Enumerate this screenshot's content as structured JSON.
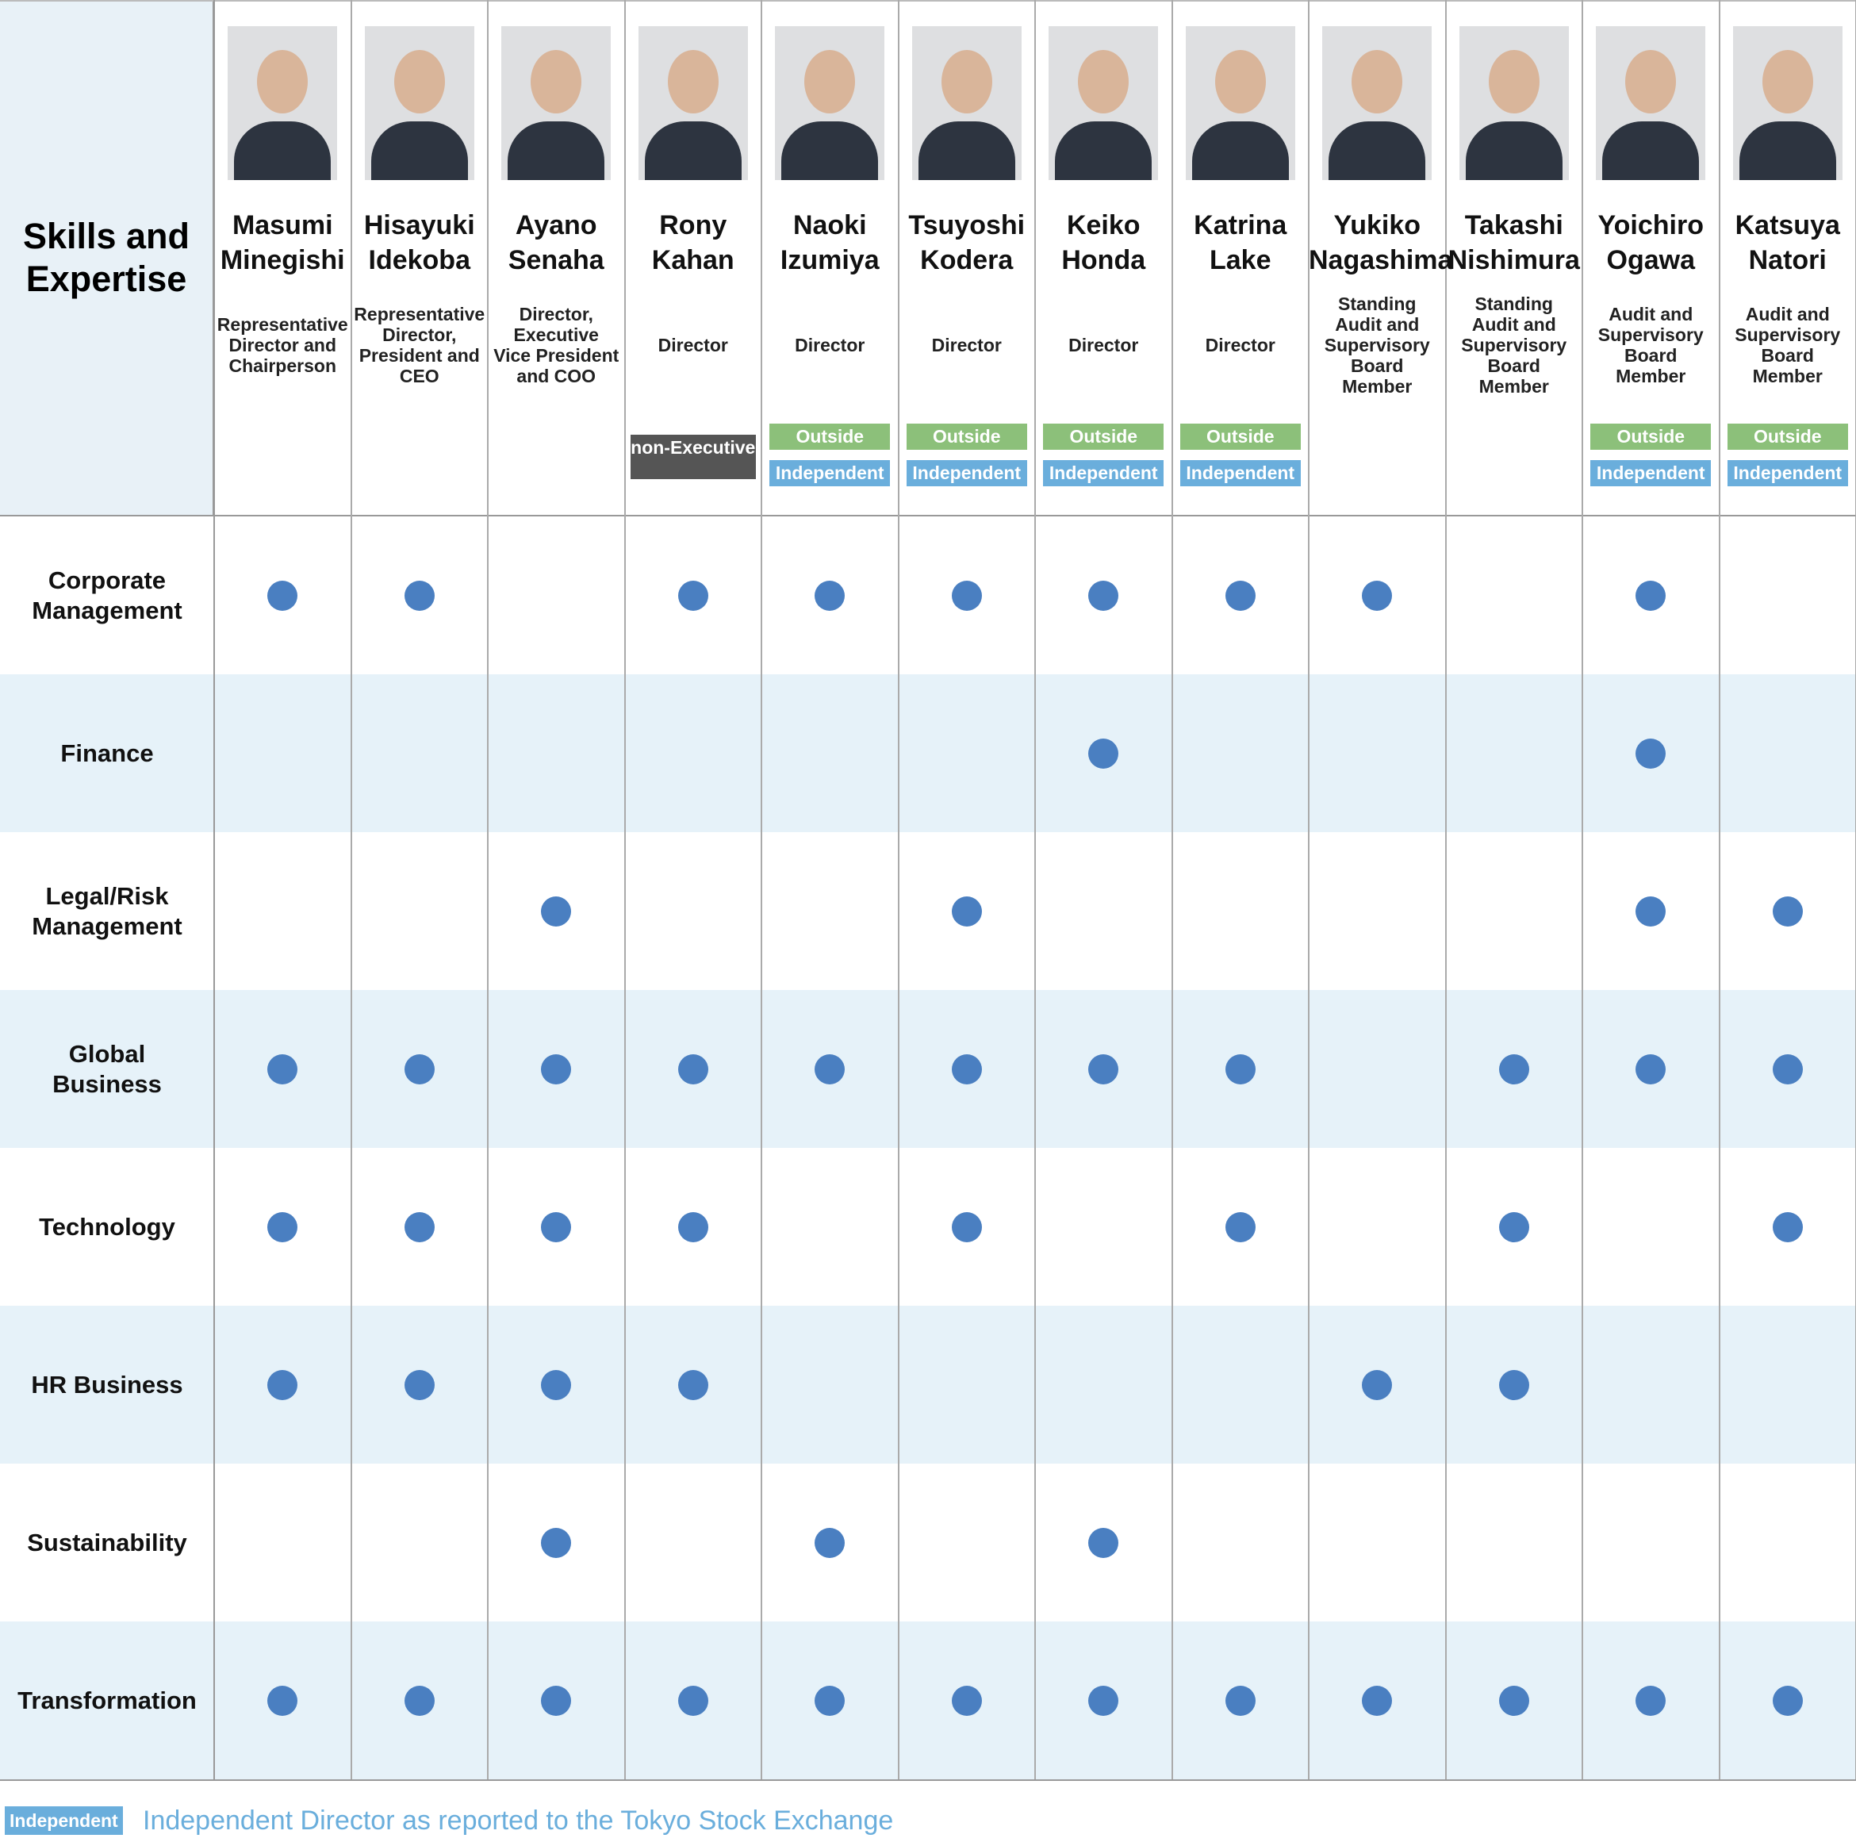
{
  "header": {
    "title": "Skills and Expertise"
  },
  "directors": [
    {
      "first": "Masumi",
      "last": "Minegishi",
      "role": "Representative Director and Chairperson",
      "badges": []
    },
    {
      "first": "Hisayuki",
      "last": "Idekoba",
      "role": "Representative Director, President and CEO",
      "badges": []
    },
    {
      "first": "Ayano",
      "last": "Senaha",
      "role": "Director, Executive Vice President and COO",
      "badges": []
    },
    {
      "first": "Rony",
      "last": "Kahan",
      "role": "Director",
      "badges": [
        "non-Executive"
      ]
    },
    {
      "first": "Naoki",
      "last": "Izumiya",
      "role": "Director",
      "badges": [
        "Outside",
        "Independent"
      ]
    },
    {
      "first": "Tsuyoshi",
      "last": "Kodera",
      "role": "Director",
      "badges": [
        "Outside",
        "Independent"
      ]
    },
    {
      "first": "Keiko",
      "last": "Honda",
      "role": "Director",
      "badges": [
        "Outside",
        "Independent"
      ]
    },
    {
      "first": "Katrina",
      "last": "Lake",
      "role": "Director",
      "badges": [
        "Outside",
        "Independent"
      ]
    },
    {
      "first": "Yukiko",
      "last": "Nagashima",
      "role": "Standing Audit and Supervisory Board Member",
      "badges": []
    },
    {
      "first": "Takashi",
      "last": "Nishimura",
      "role": "Standing Audit and Supervisory Board Member",
      "badges": []
    },
    {
      "first": "Yoichiro",
      "last": "Ogawa",
      "role": "Audit and Supervisory Board Member",
      "badges": [
        "Outside",
        "Independent"
      ]
    },
    {
      "first": "Katsuya",
      "last": "Natori",
      "role": "Audit and Supervisory Board Member",
      "badges": [
        "Outside",
        "Independent"
      ]
    }
  ],
  "skills": [
    {
      "label": "Corporate Management",
      "marks": [
        true,
        true,
        false,
        true,
        true,
        true,
        true,
        true,
        true,
        false,
        true,
        false
      ]
    },
    {
      "label": "Finance",
      "marks": [
        false,
        false,
        false,
        false,
        false,
        false,
        true,
        false,
        false,
        false,
        true,
        false
      ]
    },
    {
      "label": "Legal/Risk Management",
      "marks": [
        false,
        false,
        true,
        false,
        false,
        true,
        false,
        false,
        false,
        false,
        true,
        true
      ]
    },
    {
      "label": "Global Business",
      "marks": [
        true,
        true,
        true,
        true,
        true,
        true,
        true,
        true,
        false,
        true,
        true,
        true
      ]
    },
    {
      "label": "Technology",
      "marks": [
        true,
        true,
        true,
        true,
        false,
        true,
        false,
        true,
        false,
        true,
        false,
        true
      ]
    },
    {
      "label": "HR Business",
      "marks": [
        true,
        true,
        true,
        true,
        false,
        false,
        false,
        false,
        true,
        true,
        false,
        false
      ]
    },
    {
      "label": "Sustainability",
      "marks": [
        false,
        false,
        true,
        false,
        true,
        false,
        true,
        false,
        false,
        false,
        false,
        false
      ]
    },
    {
      "label": "Transformation",
      "marks": [
        true,
        true,
        true,
        true,
        true,
        true,
        true,
        true,
        true,
        true,
        true,
        true
      ]
    }
  ],
  "legend": {
    "badge": "Independent",
    "text": "Independent Director as reported to the Tokyo Stock Exchange"
  }
}
